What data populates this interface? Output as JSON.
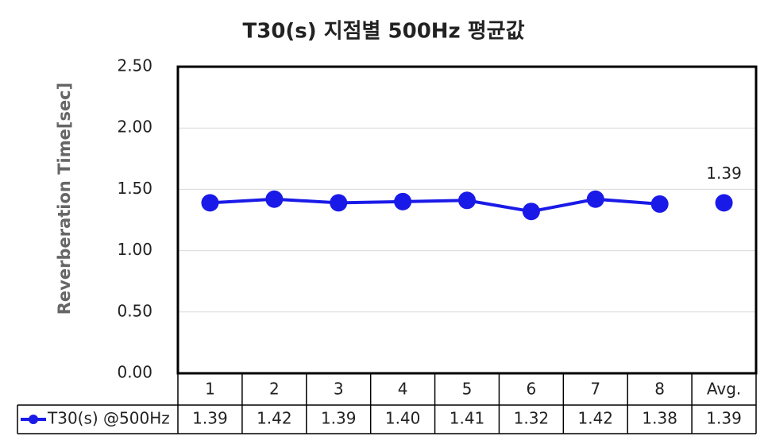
{
  "chart_data": {
    "type": "line",
    "title": "T30(s) 지점별 500Hz 평균값",
    "ylabel": "Reverberation Time[sec]",
    "categories": [
      "1",
      "2",
      "3",
      "4",
      "5",
      "6",
      "7",
      "8",
      "Avg."
    ],
    "series": [
      {
        "name": "T30(s) @500Hz",
        "color": "#1a1ae8",
        "values": [
          1.39,
          1.42,
          1.39,
          1.4,
          1.41,
          1.32,
          1.42,
          1.38,
          1.39
        ],
        "value_labels": [
          "1.39",
          "1.42",
          "1.39",
          "1.40",
          "1.41",
          "1.32",
          "1.42",
          "1.38",
          "1.39"
        ]
      }
    ],
    "ylim": [
      0,
      2.5
    ],
    "yticks": [
      {
        "value": 0,
        "label": "0.00"
      },
      {
        "value": 0.5,
        "label": "0.50"
      },
      {
        "value": 1,
        "label": "1.00"
      },
      {
        "value": 1.5,
        "label": "1.50"
      },
      {
        "value": 2,
        "label": "2.00"
      },
      {
        "value": 2.5,
        "label": "2.50"
      }
    ],
    "grid": true
  }
}
